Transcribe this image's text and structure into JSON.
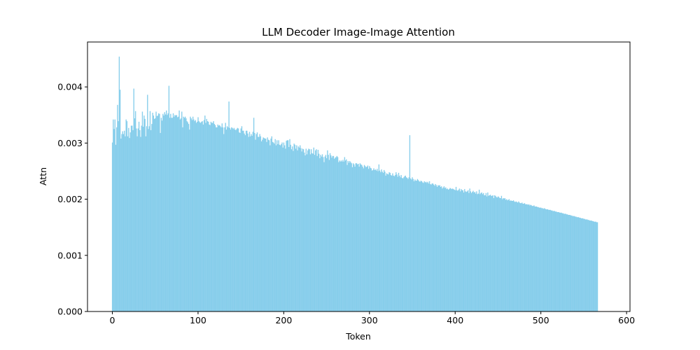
{
  "chart_data": {
    "type": "bar",
    "title": "LLM Decoder Image-Image Attention",
    "xlabel": "Token",
    "ylabel": "Attn",
    "xlim": [
      -29,
      604
    ],
    "ylim": [
      0,
      0.0048
    ],
    "xticks": [
      0,
      100,
      200,
      300,
      400,
      500,
      600
    ],
    "xtick_labels": [
      "0",
      "100",
      "200",
      "300",
      "400",
      "500",
      "600"
    ],
    "yticks": [
      0,
      0.001,
      0.002,
      0.003,
      0.004
    ],
    "ytick_labels": [
      "0.000",
      "0.001",
      "0.002",
      "0.003",
      "0.004"
    ],
    "grid": false,
    "legend": "none",
    "bar_color": "#87ceeb",
    "series": [
      {
        "x_start": 0,
        "x_step": 1,
        "count": 576,
        "values": [
          0.00301,
          0.00342,
          0.00325,
          0.00342,
          0.00297,
          0.00328,
          0.00368,
          0.00339,
          0.00454,
          0.00395,
          0.00308,
          0.00316,
          0.00321,
          0.00316,
          0.00322,
          0.00312,
          0.00342,
          0.00339,
          0.00312,
          0.00327,
          0.00309,
          0.00319,
          0.00331,
          0.00331,
          0.00323,
          0.00397,
          0.00344,
          0.00357,
          0.00326,
          0.00312,
          0.00326,
          0.00338,
          0.00323,
          0.00311,
          0.00331,
          0.00356,
          0.00329,
          0.00349,
          0.00343,
          0.00312,
          0.0033,
          0.00386,
          0.00325,
          0.0033,
          0.00357,
          0.00323,
          0.00334,
          0.00354,
          0.00349,
          0.00343,
          0.00344,
          0.00356,
          0.00348,
          0.00349,
          0.00353,
          0.00352,
          0.00318,
          0.00345,
          0.0034,
          0.00352,
          0.00349,
          0.00355,
          0.00351,
          0.00358,
          0.0035,
          0.00353,
          0.00402,
          0.00345,
          0.00352,
          0.00345,
          0.00345,
          0.00353,
          0.00347,
          0.0035,
          0.00349,
          0.0035,
          0.00346,
          0.00347,
          0.00358,
          0.00342,
          0.00344,
          0.00356,
          0.00328,
          0.00347,
          0.00345,
          0.00347,
          0.00344,
          0.00339,
          0.00337,
          0.00334,
          0.00324,
          0.00347,
          0.00344,
          0.00341,
          0.00347,
          0.00342,
          0.00339,
          0.00341,
          0.00336,
          0.00338,
          0.00346,
          0.00339,
          0.00337,
          0.00336,
          0.00338,
          0.00339,
          0.00333,
          0.00341,
          0.00349,
          0.00336,
          0.00343,
          0.00339,
          0.00338,
          0.00333,
          0.00332,
          0.00338,
          0.00336,
          0.00336,
          0.00339,
          0.00334,
          0.00332,
          0.00328,
          0.00328,
          0.00333,
          0.00331,
          0.00332,
          0.0033,
          0.00328,
          0.00335,
          0.00328,
          0.00316,
          0.00328,
          0.00336,
          0.00324,
          0.0033,
          0.00328,
          0.00374,
          0.00327,
          0.00324,
          0.00328,
          0.00327,
          0.00325,
          0.00327,
          0.00324,
          0.00323,
          0.00325,
          0.00327,
          0.00326,
          0.00319,
          0.00318,
          0.00326,
          0.0033,
          0.00322,
          0.00322,
          0.00317,
          0.00314,
          0.00322,
          0.00322,
          0.00317,
          0.00311,
          0.0032,
          0.00312,
          0.00316,
          0.00313,
          0.0032,
          0.00345,
          0.00318,
          0.00306,
          0.00316,
          0.00319,
          0.00311,
          0.00311,
          0.00316,
          0.00312,
          0.00303,
          0.00306,
          0.0031,
          0.00309,
          0.00308,
          0.00308,
          0.00302,
          0.0031,
          0.00306,
          0.00305,
          0.00296,
          0.00308,
          0.00312,
          0.00302,
          0.00301,
          0.00299,
          0.00307,
          0.00296,
          0.00305,
          0.00298,
          0.00305,
          0.00297,
          0.00296,
          0.00298,
          0.00301,
          0.00292,
          0.00301,
          0.00296,
          0.0029,
          0.00304,
          0.00305,
          0.00305,
          0.00293,
          0.00307,
          0.00297,
          0.00289,
          0.00294,
          0.00286,
          0.00299,
          0.00297,
          0.0029,
          0.00296,
          0.00287,
          0.00294,
          0.00292,
          0.00296,
          0.00291,
          0.00285,
          0.0029,
          0.00289,
          0.00283,
          0.00278,
          0.0029,
          0.0028,
          0.00287,
          0.0029,
          0.00289,
          0.0028,
          0.00289,
          0.00282,
          0.00281,
          0.00292,
          0.00279,
          0.00287,
          0.00289,
          0.00277,
          0.00288,
          0.00281,
          0.00273,
          0.00279,
          0.00276,
          0.0028,
          0.00275,
          0.00266,
          0.00276,
          0.00279,
          0.00273,
          0.00287,
          0.00279,
          0.0027,
          0.00282,
          0.00278,
          0.00274,
          0.00277,
          0.00277,
          0.00272,
          0.00274,
          0.00275,
          0.00277,
          0.00275,
          0.00266,
          0.00269,
          0.00267,
          0.00269,
          0.00267,
          0.0027,
          0.00267,
          0.00275,
          0.00269,
          0.00271,
          0.00261,
          0.00268,
          0.00265,
          0.00268,
          0.00266,
          0.00264,
          0.00257,
          0.00264,
          0.00262,
          0.00258,
          0.00264,
          0.00264,
          0.00262,
          0.00263,
          0.00258,
          0.00264,
          0.00262,
          0.00261,
          0.00258,
          0.00255,
          0.00261,
          0.00259,
          0.00257,
          0.00258,
          0.0026,
          0.00254,
          0.00259,
          0.00256,
          0.00255,
          0.00251,
          0.00252,
          0.00255,
          0.00252,
          0.00253,
          0.00251,
          0.00254,
          0.0025,
          0.00262,
          0.00251,
          0.00248,
          0.00253,
          0.00249,
          0.00247,
          0.00252,
          0.00249,
          0.00242,
          0.00246,
          0.00245,
          0.00244,
          0.00248,
          0.00247,
          0.00243,
          0.00242,
          0.00246,
          0.00242,
          0.00241,
          0.00243,
          0.00248,
          0.00244,
          0.0024,
          0.00247,
          0.00242,
          0.00239,
          0.00243,
          0.00238,
          0.00237,
          0.00239,
          0.00241,
          0.00242,
          0.00239,
          0.00238,
          0.00236,
          0.00239,
          0.00314,
          0.00237,
          0.00235,
          0.00239,
          0.00236,
          0.00232,
          0.00235,
          0.00233,
          0.00233,
          0.00236,
          0.00234,
          0.00232,
          0.00231,
          0.00233,
          0.00232,
          0.0023,
          0.00229,
          0.00232,
          0.0023,
          0.00231,
          0.00229,
          0.00231,
          0.00228,
          0.00232,
          0.00227,
          0.00226,
          0.00228,
          0.00228,
          0.00226,
          0.00224,
          0.00227,
          0.00225,
          0.00222,
          0.00225,
          0.00224,
          0.00225,
          0.00222,
          0.00223,
          0.00219,
          0.00221,
          0.00223,
          0.0022,
          0.00221,
          0.00218,
          0.00219,
          0.00217,
          0.00218,
          0.0022,
          0.00219,
          0.00218,
          0.00219,
          0.00218,
          0.00217,
          0.00216,
          0.00222,
          0.00216,
          0.00215,
          0.00217,
          0.00219,
          0.00214,
          0.00218,
          0.00216,
          0.00216,
          0.00212,
          0.00218,
          0.00214,
          0.00213,
          0.00214,
          0.00216,
          0.00211,
          0.00219,
          0.00214,
          0.00211,
          0.00213,
          0.00215,
          0.00212,
          0.00213,
          0.0021,
          0.00214,
          0.00209,
          0.0021,
          0.00217,
          0.00209,
          0.00211,
          0.00212,
          0.00209,
          0.00211,
          0.00207,
          0.00207,
          0.00211,
          0.00205,
          0.00212,
          0.00206,
          0.00207,
          0.00208,
          0.00206,
          0.00206,
          0.00207,
          0.00202,
          0.00207,
          0.00206,
          0.00204,
          0.00203,
          0.00205,
          0.00204,
          0.00202,
          0.00202,
          0.00206,
          0.002,
          0.00202,
          0.00201,
          0.00202,
          0.00199,
          0.002,
          0.00198,
          0.00199,
          0.002,
          0.00197,
          0.00198,
          0.00197,
          0.00197,
          0.00198,
          0.00196,
          0.00195,
          0.00196,
          0.00195,
          0.00194,
          0.00196,
          0.00194,
          0.00193,
          0.00193,
          0.00194,
          0.00192,
          0.00192,
          0.00193,
          0.00191,
          0.00191,
          0.00191,
          0.0019,
          0.00191,
          0.00189,
          0.0019,
          0.00189,
          0.00188,
          0.00188,
          0.00189,
          0.00187,
          0.00187,
          0.00187,
          0.00186,
          0.00186,
          0.00185,
          0.00185,
          0.00185,
          0.00184,
          0.00184,
          0.00183,
          0.00184,
          0.00183,
          0.00182,
          0.00182,
          0.00182,
          0.00181,
          0.00181,
          0.00181,
          0.0018,
          0.0018,
          0.00179,
          0.00179,
          0.00179,
          0.00178,
          0.00178,
          0.00177,
          0.00177,
          0.00177,
          0.00176,
          0.00176,
          0.00176,
          0.00175,
          0.00175,
          0.00174,
          0.00174,
          0.00174,
          0.00173,
          0.00173,
          0.00172,
          0.00172,
          0.00172,
          0.00171,
          0.00171,
          0.0017,
          0.0017,
          0.0017,
          0.00169,
          0.00169,
          0.00168,
          0.00168,
          0.00168,
          0.00167,
          0.00167,
          0.00166,
          0.00166,
          0.00166,
          0.00165,
          0.00165,
          0.00164,
          0.00164,
          0.00164,
          0.00163,
          0.00163,
          0.00162,
          0.00162,
          0.00162,
          0.00161,
          0.00161,
          0.0016,
          0.0016,
          0.0016,
          0.00159,
          0.00159
        ]
      }
    ]
  }
}
